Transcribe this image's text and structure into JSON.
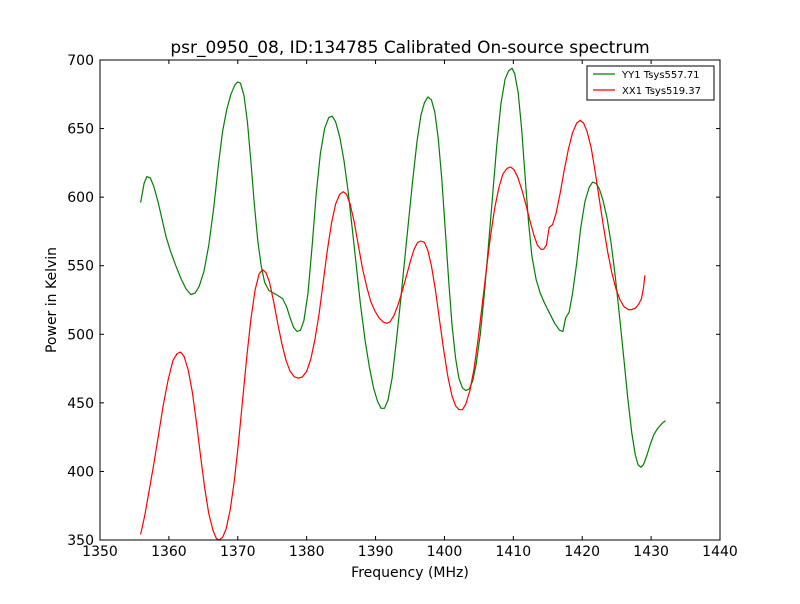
{
  "chart_data": {
    "type": "line",
    "title": "psr_0950_08, ID:134785 Calibrated On-source spectrum",
    "xlabel": "Frequency (MHz)",
    "ylabel": "Power in Kelvin",
    "xlim": [
      1350,
      1440
    ],
    "ylim": [
      350,
      700
    ],
    "xticks": [
      1350,
      1360,
      1370,
      1380,
      1390,
      1400,
      1410,
      1420,
      1430,
      1440
    ],
    "yticks": [
      350,
      400,
      450,
      500,
      550,
      600,
      650,
      700
    ],
    "grid": false,
    "legend_position": "top-right",
    "series": [
      {
        "name": "YY1 Tsys557.71",
        "color": "#008000",
        "points": [
          [
            1355.9,
            596
          ],
          [
            1356.4,
            610
          ],
          [
            1356.8,
            615
          ],
          [
            1357.3,
            614
          ],
          [
            1357.8,
            608
          ],
          [
            1358.4,
            597
          ],
          [
            1359.0,
            584
          ],
          [
            1359.6,
            571
          ],
          [
            1360.2,
            561
          ],
          [
            1361.0,
            550
          ],
          [
            1361.8,
            540
          ],
          [
            1362.5,
            533
          ],
          [
            1363.2,
            529
          ],
          [
            1363.8,
            530
          ],
          [
            1364.4,
            535
          ],
          [
            1365.1,
            546
          ],
          [
            1365.8,
            565
          ],
          [
            1366.5,
            592
          ],
          [
            1367.2,
            624
          ],
          [
            1367.8,
            648
          ],
          [
            1368.4,
            664
          ],
          [
            1369.0,
            675
          ],
          [
            1369.6,
            682
          ],
          [
            1370.0,
            684
          ],
          [
            1370.4,
            683
          ],
          [
            1370.9,
            674
          ],
          [
            1371.4,
            655
          ],
          [
            1371.9,
            626
          ],
          [
            1372.4,
            595
          ],
          [
            1372.9,
            568
          ],
          [
            1373.4,
            550
          ],
          [
            1373.9,
            538
          ],
          [
            1374.5,
            532
          ],
          [
            1375.2,
            530
          ],
          [
            1375.9,
            528
          ],
          [
            1376.5,
            526
          ],
          [
            1377.1,
            520
          ],
          [
            1377.6,
            512
          ],
          [
            1378.1,
            505
          ],
          [
            1378.6,
            502
          ],
          [
            1379.1,
            503
          ],
          [
            1379.6,
            510
          ],
          [
            1380.2,
            530
          ],
          [
            1380.8,
            565
          ],
          [
            1381.4,
            603
          ],
          [
            1382.0,
            632
          ],
          [
            1382.6,
            650
          ],
          [
            1383.2,
            658
          ],
          [
            1383.7,
            659
          ],
          [
            1384.2,
            655
          ],
          [
            1384.8,
            644
          ],
          [
            1385.4,
            627
          ],
          [
            1386.0,
            605
          ],
          [
            1386.6,
            578
          ],
          [
            1387.2,
            550
          ],
          [
            1387.8,
            522
          ],
          [
            1388.5,
            495
          ],
          [
            1389.1,
            476
          ],
          [
            1389.7,
            461
          ],
          [
            1390.3,
            451
          ],
          [
            1390.8,
            446
          ],
          [
            1391.3,
            446
          ],
          [
            1391.8,
            452
          ],
          [
            1392.4,
            468
          ],
          [
            1393.0,
            494
          ],
          [
            1393.6,
            523
          ],
          [
            1394.2,
            553
          ],
          [
            1394.8,
            583
          ],
          [
            1395.4,
            613
          ],
          [
            1396.0,
            640
          ],
          [
            1396.6,
            660
          ],
          [
            1397.1,
            669
          ],
          [
            1397.6,
            673
          ],
          [
            1398.1,
            671
          ],
          [
            1398.6,
            662
          ],
          [
            1399.1,
            643
          ],
          [
            1399.6,
            614
          ],
          [
            1400.1,
            578
          ],
          [
            1400.6,
            540
          ],
          [
            1401.1,
            507
          ],
          [
            1401.6,
            483
          ],
          [
            1402.1,
            468
          ],
          [
            1402.6,
            461
          ],
          [
            1403.1,
            459
          ],
          [
            1403.6,
            460
          ],
          [
            1404.1,
            466
          ],
          [
            1404.6,
            478
          ],
          [
            1405.2,
            500
          ],
          [
            1405.8,
            530
          ],
          [
            1406.4,
            565
          ],
          [
            1407.0,
            602
          ],
          [
            1407.6,
            638
          ],
          [
            1408.2,
            668
          ],
          [
            1408.8,
            686
          ],
          [
            1409.3,
            692
          ],
          [
            1409.8,
            694
          ],
          [
            1410.2,
            690
          ],
          [
            1410.7,
            676
          ],
          [
            1411.2,
            650
          ],
          [
            1411.7,
            616
          ],
          [
            1412.2,
            582
          ],
          [
            1412.7,
            557
          ],
          [
            1413.3,
            540
          ],
          [
            1413.9,
            530
          ],
          [
            1414.6,
            522
          ],
          [
            1415.3,
            515
          ],
          [
            1416.0,
            508
          ],
          [
            1416.7,
            503
          ],
          [
            1417.2,
            502
          ],
          [
            1417.6,
            512
          ],
          [
            1418.1,
            516
          ],
          [
            1418.6,
            530
          ],
          [
            1419.2,
            552
          ],
          [
            1419.8,
            578
          ],
          [
            1420.4,
            597
          ],
          [
            1421.0,
            607
          ],
          [
            1421.5,
            611
          ],
          [
            1422.0,
            610
          ],
          [
            1422.5,
            606
          ],
          [
            1423.0,
            598
          ],
          [
            1423.6,
            585
          ],
          [
            1424.2,
            566
          ],
          [
            1424.8,
            542
          ],
          [
            1425.4,
            514
          ],
          [
            1426.0,
            484
          ],
          [
            1426.6,
            454
          ],
          [
            1427.2,
            428
          ],
          [
            1427.7,
            412
          ],
          [
            1428.1,
            405
          ],
          [
            1428.5,
            403
          ],
          [
            1428.9,
            405
          ],
          [
            1429.4,
            412
          ],
          [
            1429.9,
            420
          ],
          [
            1430.4,
            427
          ],
          [
            1430.9,
            431
          ],
          [
            1431.4,
            434
          ],
          [
            1431.8,
            436
          ],
          [
            1432.1,
            437
          ]
        ]
      },
      {
        "name": "XX1 Tsys519.37",
        "color": "#ff0000",
        "points": [
          [
            1355.9,
            354
          ],
          [
            1356.5,
            368
          ],
          [
            1357.1,
            385
          ],
          [
            1357.8,
            405
          ],
          [
            1358.5,
            427
          ],
          [
            1359.2,
            449
          ],
          [
            1359.9,
            467
          ],
          [
            1360.6,
            481
          ],
          [
            1361.2,
            486
          ],
          [
            1361.7,
            487
          ],
          [
            1362.2,
            484
          ],
          [
            1362.8,
            474
          ],
          [
            1363.4,
            458
          ],
          [
            1364.0,
            436
          ],
          [
            1364.6,
            411
          ],
          [
            1365.2,
            388
          ],
          [
            1365.8,
            369
          ],
          [
            1366.4,
            357
          ],
          [
            1366.9,
            351
          ],
          [
            1367.3,
            350
          ],
          [
            1367.8,
            352
          ],
          [
            1368.3,
            358
          ],
          [
            1368.9,
            372
          ],
          [
            1369.5,
            393
          ],
          [
            1370.1,
            421
          ],
          [
            1370.7,
            452
          ],
          [
            1371.3,
            483
          ],
          [
            1371.9,
            511
          ],
          [
            1372.5,
            532
          ],
          [
            1373.1,
            544
          ],
          [
            1373.6,
            547
          ],
          [
            1374.1,
            545
          ],
          [
            1374.6,
            538
          ],
          [
            1375.2,
            524
          ],
          [
            1375.8,
            508
          ],
          [
            1376.4,
            493
          ],
          [
            1377.0,
            481
          ],
          [
            1377.6,
            473
          ],
          [
            1378.2,
            469
          ],
          [
            1378.8,
            468
          ],
          [
            1379.4,
            469
          ],
          [
            1380.0,
            473
          ],
          [
            1380.6,
            482
          ],
          [
            1381.2,
            496
          ],
          [
            1381.8,
            515
          ],
          [
            1382.4,
            538
          ],
          [
            1383.0,
            561
          ],
          [
            1383.6,
            581
          ],
          [
            1384.2,
            595
          ],
          [
            1384.8,
            602
          ],
          [
            1385.3,
            604
          ],
          [
            1385.8,
            602
          ],
          [
            1386.3,
            595
          ],
          [
            1386.9,
            582
          ],
          [
            1387.5,
            565
          ],
          [
            1388.1,
            548
          ],
          [
            1388.7,
            535
          ],
          [
            1389.3,
            524
          ],
          [
            1389.9,
            517
          ],
          [
            1390.5,
            512
          ],
          [
            1391.1,
            509
          ],
          [
            1391.6,
            508
          ],
          [
            1392.1,
            509
          ],
          [
            1392.7,
            514
          ],
          [
            1393.3,
            522
          ],
          [
            1393.9,
            532
          ],
          [
            1394.5,
            543
          ],
          [
            1395.1,
            554
          ],
          [
            1395.6,
            562
          ],
          [
            1396.1,
            567
          ],
          [
            1396.6,
            568
          ],
          [
            1397.1,
            567
          ],
          [
            1397.6,
            561
          ],
          [
            1398.1,
            550
          ],
          [
            1398.7,
            532
          ],
          [
            1399.3,
            510
          ],
          [
            1399.9,
            488
          ],
          [
            1400.5,
            469
          ],
          [
            1401.1,
            455
          ],
          [
            1401.6,
            448
          ],
          [
            1402.1,
            445
          ],
          [
            1402.6,
            445
          ],
          [
            1403.1,
            449
          ],
          [
            1403.7,
            459
          ],
          [
            1404.3,
            475
          ],
          [
            1404.9,
            497
          ],
          [
            1405.5,
            522
          ],
          [
            1406.1,
            548
          ],
          [
            1406.7,
            572
          ],
          [
            1407.3,
            592
          ],
          [
            1407.9,
            607
          ],
          [
            1408.5,
            617
          ],
          [
            1409.1,
            621
          ],
          [
            1409.6,
            622
          ],
          [
            1410.1,
            620
          ],
          [
            1410.6,
            615
          ],
          [
            1411.2,
            606
          ],
          [
            1411.8,
            595
          ],
          [
            1412.4,
            583
          ],
          [
            1413.0,
            572
          ],
          [
            1413.5,
            565
          ],
          [
            1414.0,
            562
          ],
          [
            1414.4,
            562
          ],
          [
            1414.8,
            565
          ],
          [
            1415.2,
            578
          ],
          [
            1415.7,
            580
          ],
          [
            1416.2,
            588
          ],
          [
            1416.8,
            603
          ],
          [
            1417.4,
            620
          ],
          [
            1418.0,
            635
          ],
          [
            1418.6,
            647
          ],
          [
            1419.2,
            654
          ],
          [
            1419.7,
            656
          ],
          [
            1420.2,
            654
          ],
          [
            1420.7,
            648
          ],
          [
            1421.3,
            636
          ],
          [
            1421.9,
            618
          ],
          [
            1422.5,
            598
          ],
          [
            1423.1,
            578
          ],
          [
            1423.7,
            560
          ],
          [
            1424.3,
            545
          ],
          [
            1424.9,
            533
          ],
          [
            1425.5,
            525
          ],
          [
            1426.1,
            520
          ],
          [
            1426.7,
            518
          ],
          [
            1427.2,
            518
          ],
          [
            1427.7,
            519
          ],
          [
            1428.2,
            522
          ],
          [
            1428.6,
            526
          ],
          [
            1428.9,
            534
          ],
          [
            1429.1,
            543
          ]
        ]
      }
    ]
  }
}
